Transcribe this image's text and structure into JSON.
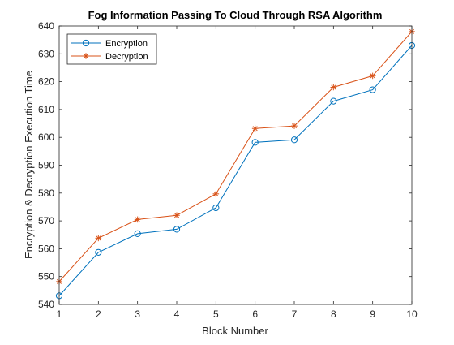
{
  "chart_data": {
    "type": "line",
    "title": "Fog Information Passing To Cloud Through RSA Algorithm",
    "xlabel": "Block Number",
    "ylabel": "Encryption & Decryption Execution Time",
    "x": [
      1,
      2,
      3,
      4,
      5,
      6,
      7,
      8,
      9,
      10
    ],
    "xlim": [
      1,
      10
    ],
    "ylim": [
      540,
      640
    ],
    "xticks": [
      1,
      2,
      3,
      4,
      5,
      6,
      7,
      8,
      9,
      10
    ],
    "yticks": [
      540,
      550,
      560,
      570,
      580,
      590,
      600,
      610,
      620,
      630,
      640
    ],
    "grid": false,
    "legend_position": "top-left",
    "series": [
      {
        "name": "Encryption",
        "values": [
          543.1,
          558.7,
          565.4,
          567.0,
          574.7,
          598.2,
          599.1,
          613.0,
          617.1,
          633.0
        ],
        "color": "#0072BD",
        "marker": "circle"
      },
      {
        "name": "Decryption",
        "values": [
          548.2,
          563.8,
          570.5,
          572.0,
          579.7,
          603.2,
          604.1,
          618.0,
          622.1,
          638.0
        ],
        "color": "#D95319",
        "marker": "asterisk"
      }
    ]
  }
}
